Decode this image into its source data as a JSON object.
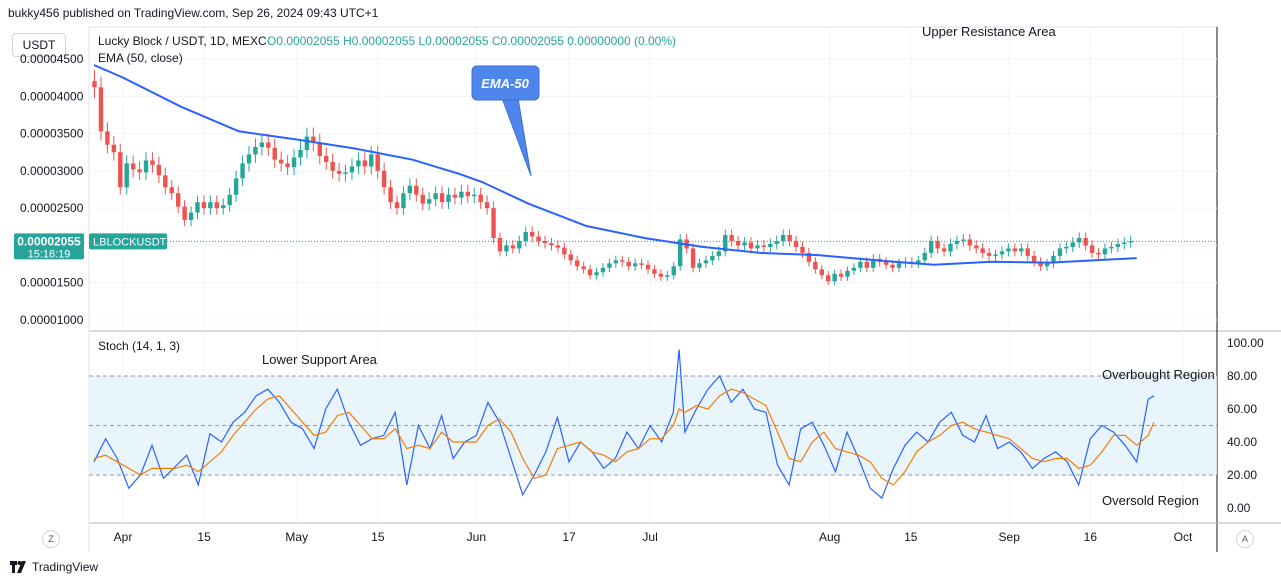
{
  "header": {
    "published": "bukky456 published on TradingView.com, Sep 26, 2024 09:43 UTC+1"
  },
  "footer": {
    "brand": "TradingView"
  },
  "unit_button": "USDT",
  "corner_left": "Z",
  "corner_right": "A",
  "legend": {
    "symbol": "Lucky Block / USDT, 1D, MEXC",
    "ohlc": "O0.00002055 H0.00002055 L0.00002055 C0.00002055 0.00000000 (0.00%)",
    "ema": "EMA (50, close)",
    "stoch": "Stoch (14, 1, 3)"
  },
  "price_tag": {
    "price": "0.00002055",
    "countdown": "15:16:19",
    "ticker": "LBLOCKUSDT"
  },
  "annotations": {
    "ema_callout": "EMA-50",
    "upper_resistance": "Upper Resistance Area",
    "lower_support": "Lower Support Area",
    "overbought": "Overbought Region",
    "oversold": "Oversold Region"
  },
  "colors": {
    "up": "#26a69a",
    "down": "#ef5350",
    "ema": "#2962ff",
    "stoch_k": "#2962ff",
    "stoch_d": "#f57c00",
    "band": "#e3f2fd",
    "callout": "#4f86ec",
    "price_tag": "#26a69a"
  },
  "chart_data": [
    {
      "type": "candlestick",
      "title": "Lucky Block / USDT, 1D, MEXC",
      "x_tick_labels": [
        "Apr",
        "15",
        "May",
        "15",
        "Jun",
        "17",
        "Jul",
        "Aug",
        "15",
        "Sep",
        "16",
        "Oct"
      ],
      "x_tick_days": [
        0,
        14,
        30,
        44,
        61,
        77,
        91,
        122,
        136,
        153,
        167,
        183
      ],
      "y_tick_labels": [
        "0.00001000",
        "0.00001500",
        "0.00002000",
        "0.00002500",
        "0.00003000",
        "0.00003500",
        "0.00004000",
        "0.00004500"
      ],
      "y_ticks": [
        1e-05,
        1.5e-05,
        2e-05,
        2.5e-05,
        3e-05,
        3.5e-05,
        4e-05,
        4.5e-05
      ],
      "ylim": [
        7.7e-06,
        4.75e-05
      ],
      "last_price": 2.055e-05,
      "ema50": [
        [
          -5,
          4.42e-05
        ],
        [
          0,
          4.25e-05
        ],
        [
          10,
          3.86e-05
        ],
        [
          20,
          3.53e-05
        ],
        [
          30,
          3.42e-05
        ],
        [
          40,
          3.3e-05
        ],
        [
          50,
          3.15e-05
        ],
        [
          58,
          2.96e-05
        ],
        [
          62,
          2.85e-05
        ],
        [
          70,
          2.56e-05
        ],
        [
          80,
          2.26e-05
        ],
        [
          90,
          2.1e-05
        ],
        [
          100,
          1.98e-05
        ],
        [
          110,
          1.9e-05
        ],
        [
          120,
          1.87e-05
        ],
        [
          130,
          1.8e-05
        ],
        [
          140,
          1.74e-05
        ],
        [
          150,
          1.78e-05
        ],
        [
          160,
          1.77e-05
        ],
        [
          170,
          1.81e-05
        ],
        [
          175,
          1.83e-05
        ]
      ],
      "candles_close": [
        4.12e-05,
        3.53e-05,
        3.35e-05,
        3.25e-05,
        2.78e-05,
        3.1e-05,
        3.02e-05,
        2.98e-05,
        3.14e-05,
        3.08e-05,
        2.94e-05,
        2.78e-05,
        2.7e-05,
        2.52e-05,
        2.34e-05,
        2.44e-05,
        2.58e-05,
        2.5e-05,
        2.58e-05,
        2.5e-05,
        2.54e-05,
        2.68e-05,
        2.9e-05,
        3.1e-05,
        3.22e-05,
        3.32e-05,
        3.38e-05,
        3.31e-05,
        3.15e-05,
        3.1e-05,
        3.05e-05,
        3.18e-05,
        3.28e-05,
        3.46e-05,
        3.38e-05,
        3.2e-05,
        3.12e-05,
        3e-05,
        2.96e-05,
        2.98e-05,
        3.06e-05,
        3.14e-05,
        3.06e-05,
        3.22e-05,
        3e-05,
        2.78e-05,
        2.58e-05,
        2.5e-05,
        2.7e-05,
        2.8e-05,
        2.68e-05,
        2.56e-05,
        2.62e-05,
        2.7e-05,
        2.58e-05,
        2.68e-05,
        2.64e-05,
        2.72e-05,
        2.66e-05,
        2.68e-05,
        2.58e-05,
        2.5e-05,
        2.1e-05,
        1.92e-05,
        2e-05,
        1.96e-05,
        2.06e-05,
        2.18e-05,
        2.12e-05,
        2.06e-05,
        2.03e-05,
        2e-05,
        1.97e-05,
        1.88e-05,
        1.8e-05,
        1.72e-05,
        1.68e-05,
        1.6e-05,
        1.64e-05,
        1.7e-05,
        1.76e-05,
        1.8e-05,
        1.78e-05,
        1.72e-05,
        1.76e-05,
        1.74e-05,
        1.68e-05,
        1.62e-05,
        1.58e-05,
        1.6e-05,
        1.72e-05,
        2.08e-05,
        1.96e-05,
        1.7e-05,
        1.76e-05,
        1.8e-05,
        1.86e-05,
        1.92e-05,
        2.14e-05,
        2.06e-05,
        2e-05,
        2.04e-05,
        1.96e-05,
        2e-05,
        1.98e-05,
        2.02e-05,
        2.06e-05,
        2.14e-05,
        2.06e-05,
        1.98e-05,
        1.9e-05,
        1.78e-05,
        1.68e-05,
        1.6e-05,
        1.52e-05,
        1.62e-05,
        1.58e-05,
        1.66e-05,
        1.7e-05,
        1.78e-05,
        1.7e-05,
        1.82e-05,
        1.78e-05,
        1.74e-05,
        1.7e-05,
        1.76e-05,
        1.78e-05,
        1.76e-05,
        1.8e-05,
        1.9e-05,
        2.06e-05,
        1.96e-05,
        1.92e-05,
        2.02e-05,
        2.06e-05,
        2.08e-05,
        2e-05,
        1.96e-05,
        1.9e-05,
        1.86e-05,
        1.88e-05,
        1.92e-05,
        1.96e-05,
        1.92e-05,
        1.96e-05,
        1.86e-05,
        1.78e-05,
        1.72e-05,
        1.76e-05,
        1.86e-05,
        1.96e-05,
        1.98e-05,
        2.04e-05,
        2.1e-05,
        2e-05,
        1.9e-05,
        1.88e-05,
        1.96e-05,
        1.98e-05,
        2.02e-05,
        2.04e-05,
        2.06e-05
      ]
    },
    {
      "type": "line",
      "title": "Stoch (14, 1, 3)",
      "y_tick_labels": [
        "0.00",
        "20.00",
        "40.00",
        "60.00",
        "80.00",
        "100.00"
      ],
      "ylim": [
        -8,
        104
      ],
      "levels": [
        20,
        50,
        80
      ],
      "series": [
        {
          "name": "%K",
          "values": [
            [
              -5,
              28
            ],
            [
              -3,
              42
            ],
            [
              -1,
              30
            ],
            [
              1,
              12
            ],
            [
              3,
              20
            ],
            [
              5,
              38
            ],
            [
              7,
              18
            ],
            [
              9,
              25
            ],
            [
              11,
              32
            ],
            [
              13,
              14
            ],
            [
              15,
              45
            ],
            [
              17,
              40
            ],
            [
              19,
              52
            ],
            [
              21,
              58
            ],
            [
              23,
              68
            ],
            [
              25,
              72
            ],
            [
              27,
              64
            ],
            [
              29,
              52
            ],
            [
              31,
              48
            ],
            [
              33,
              36
            ],
            [
              35,
              60
            ],
            [
              37,
              72
            ],
            [
              39,
              52
            ],
            [
              41,
              38
            ],
            [
              43,
              42
            ],
            [
              45,
              44
            ],
            [
              47,
              58
            ],
            [
              49,
              14
            ],
            [
              51,
              50
            ],
            [
              53,
              36
            ],
            [
              55,
              56
            ],
            [
              57,
              30
            ],
            [
              59,
              40
            ],
            [
              61,
              44
            ],
            [
              63,
              64
            ],
            [
              65,
              52
            ],
            [
              67,
              30
            ],
            [
              69,
              8
            ],
            [
              71,
              20
            ],
            [
              73,
              34
            ],
            [
              75,
              55
            ],
            [
              77,
              28
            ],
            [
              79,
              40
            ],
            [
              81,
              34
            ],
            [
              83,
              24
            ],
            [
              85,
              30
            ],
            [
              87,
              46
            ],
            [
              89,
              36
            ],
            [
              91,
              50
            ],
            [
              93,
              40
            ],
            [
              95,
              58
            ],
            [
              96,
              96
            ],
            [
              97,
              46
            ],
            [
              99,
              60
            ],
            [
              101,
              72
            ],
            [
              103,
              80
            ],
            [
              105,
              64
            ],
            [
              107,
              72
            ],
            [
              109,
              60
            ],
            [
              111,
              58
            ],
            [
              113,
              26
            ],
            [
              115,
              14
            ],
            [
              117,
              48
            ],
            [
              119,
              52
            ],
            [
              121,
              38
            ],
            [
              123,
              22
            ],
            [
              125,
              46
            ],
            [
              127,
              30
            ],
            [
              129,
              12
            ],
            [
              131,
              6
            ],
            [
              133,
              24
            ],
            [
              135,
              38
            ],
            [
              137,
              46
            ],
            [
              139,
              40
            ],
            [
              141,
              52
            ],
            [
              143,
              58
            ],
            [
              145,
              44
            ],
            [
              147,
              40
            ],
            [
              149,
              56
            ],
            [
              151,
              36
            ],
            [
              153,
              40
            ],
            [
              155,
              34
            ],
            [
              157,
              24
            ],
            [
              159,
              30
            ],
            [
              161,
              34
            ],
            [
              163,
              28
            ],
            [
              165,
              14
            ],
            [
              167,
              42
            ],
            [
              169,
              50
            ],
            [
              171,
              46
            ],
            [
              173,
              38
            ],
            [
              175,
              28
            ],
            [
              177,
              66
            ],
            [
              178,
              68
            ]
          ]
        },
        {
          "name": "%D",
          "values": [
            [
              -5,
              30
            ],
            [
              -3,
              32
            ],
            [
              -1,
              28
            ],
            [
              1,
              24
            ],
            [
              3,
              20
            ],
            [
              5,
              24
            ],
            [
              7,
              24
            ],
            [
              9,
              24
            ],
            [
              11,
              26
            ],
            [
              13,
              22
            ],
            [
              15,
              28
            ],
            [
              17,
              34
            ],
            [
              19,
              44
            ],
            [
              21,
              52
            ],
            [
              23,
              60
            ],
            [
              25,
              66
            ],
            [
              27,
              68
            ],
            [
              29,
              60
            ],
            [
              31,
              52
            ],
            [
              33,
              44
            ],
            [
              35,
              46
            ],
            [
              37,
              56
            ],
            [
              39,
              58
            ],
            [
              41,
              50
            ],
            [
              43,
              42
            ],
            [
              45,
              42
            ],
            [
              47,
              48
            ],
            [
              49,
              36
            ],
            [
              51,
              38
            ],
            [
              53,
              36
            ],
            [
              55,
              46
            ],
            [
              57,
              40
            ],
            [
              59,
              40
            ],
            [
              61,
              40
            ],
            [
              63,
              50
            ],
            [
              65,
              54
            ],
            [
              67,
              46
            ],
            [
              69,
              30
            ],
            [
              71,
              18
            ],
            [
              73,
              20
            ],
            [
              75,
              36
            ],
            [
              77,
              38
            ],
            [
              79,
              40
            ],
            [
              81,
              34
            ],
            [
              83,
              32
            ],
            [
              85,
              28
            ],
            [
              87,
              34
            ],
            [
              89,
              36
            ],
            [
              91,
              42
            ],
            [
              93,
              42
            ],
            [
              95,
              50
            ],
            [
              96,
              60
            ],
            [
              97,
              58
            ],
            [
              99,
              62
            ],
            [
              101,
              60
            ],
            [
              103,
              68
            ],
            [
              105,
              72
            ],
            [
              107,
              70
            ],
            [
              109,
              66
            ],
            [
              111,
              62
            ],
            [
              113,
              46
            ],
            [
              115,
              30
            ],
            [
              117,
              28
            ],
            [
              119,
              40
            ],
            [
              121,
              46
            ],
            [
              123,
              36
            ],
            [
              125,
              34
            ],
            [
              127,
              32
            ],
            [
              129,
              28
            ],
            [
              131,
              18
            ],
            [
              133,
              14
            ],
            [
              135,
              22
            ],
            [
              137,
              34
            ],
            [
              139,
              40
            ],
            [
              141,
              44
            ],
            [
              143,
              50
            ],
            [
              145,
              52
            ],
            [
              147,
              48
            ],
            [
              149,
              46
            ],
            [
              151,
              44
            ],
            [
              153,
              42
            ],
            [
              155,
              36
            ],
            [
              157,
              30
            ],
            [
              159,
              28
            ],
            [
              161,
              30
            ],
            [
              163,
              30
            ],
            [
              165,
              24
            ],
            [
              167,
              26
            ],
            [
              169,
              34
            ],
            [
              171,
              44
            ],
            [
              173,
              44
            ],
            [
              175,
              38
            ],
            [
              177,
              44
            ],
            [
              178,
              52
            ]
          ]
        }
      ]
    }
  ]
}
